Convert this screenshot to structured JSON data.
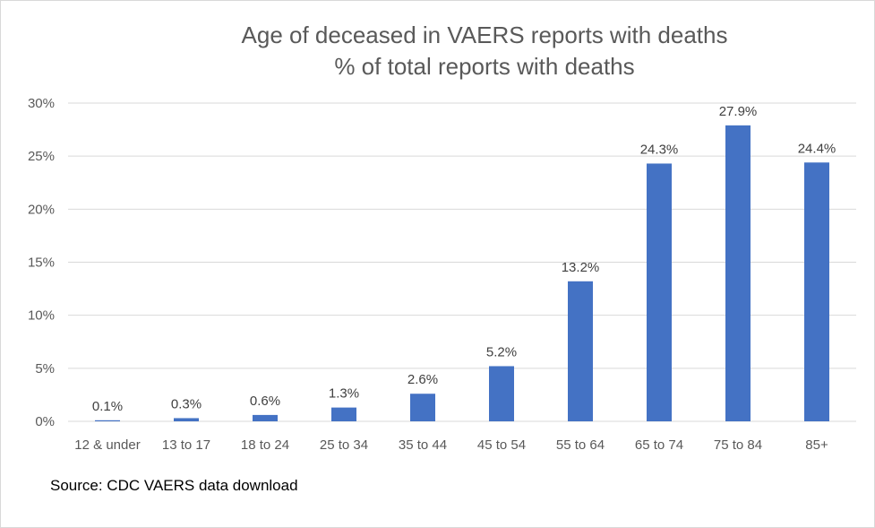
{
  "chart_data": {
    "type": "bar",
    "title": "Age of deceased  in VAERS reports with deaths",
    "subtitle": "% of total reports with deaths",
    "categories": [
      "12 & under",
      "13 to 17",
      "18 to 24",
      "25 to 34",
      "35 to 44",
      "45 to 54",
      "55 to 64",
      "65 to 74",
      "75 to 84",
      "85+"
    ],
    "values": [
      0.1,
      0.3,
      0.6,
      1.3,
      2.6,
      5.2,
      13.2,
      24.3,
      27.9,
      24.4
    ],
    "data_labels": [
      "0.1%",
      "0.3%",
      "0.6%",
      "1.3%",
      "2.6%",
      "5.2%",
      "13.2%",
      "24.3%",
      "27.9%",
      "24.4%"
    ],
    "y_ticks": [
      0,
      5,
      10,
      15,
      20,
      25,
      30
    ],
    "y_tick_labels": [
      "0%",
      "5%",
      "10%",
      "15%",
      "20%",
      "25%",
      "30%"
    ],
    "ylim": [
      0,
      30
    ],
    "xlabel": "",
    "ylabel": "",
    "grid": true,
    "legend": "none",
    "bar_color": "#4472C4",
    "gridline_color": "#d9d9d9"
  },
  "source_note": "Source: CDC VAERS data download"
}
